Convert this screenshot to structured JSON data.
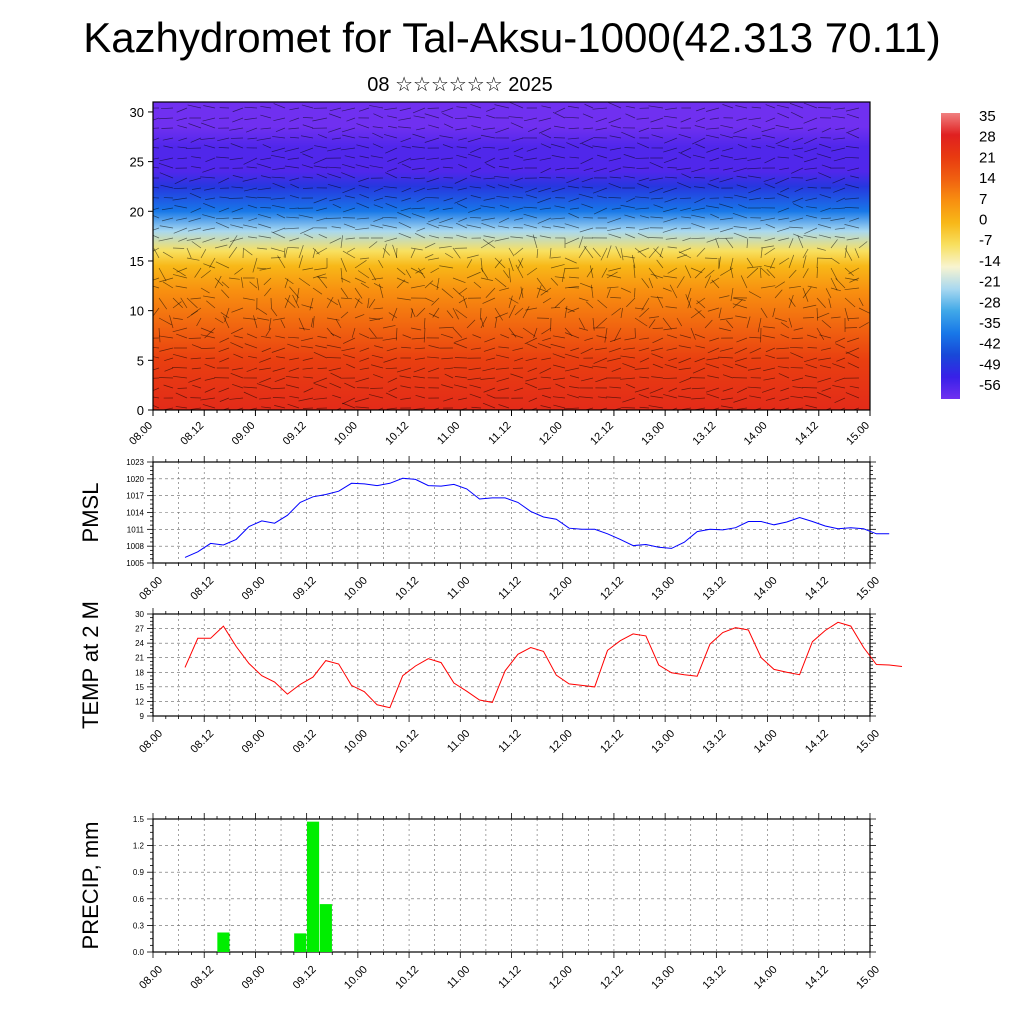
{
  "title": "Kazhydromet for Tal-Aksu-1000(42.313 70.11)",
  "subtitle": "08 ☆☆☆☆☆☆ 2025",
  "time_labels": [
    "08.00",
    "08.12",
    "09.00",
    "09.12",
    "10.00",
    "10.12",
    "11.00",
    "11.12",
    "12.00",
    "12.12",
    "13.00",
    "13.12",
    "14.00",
    "14.12",
    "15.00"
  ],
  "chart_data": [
    {
      "type": "heatmap",
      "name": "temperature-wind cross-section",
      "xlabel": "",
      "ylabel": "",
      "y_ticks": [
        0,
        5,
        10,
        15,
        20,
        25,
        30
      ],
      "ylim": [
        0,
        31
      ],
      "colorbar": {
        "labels": [
          "35",
          "28",
          "21",
          "14",
          "7",
          "0",
          "-7",
          "-14",
          "-21",
          "-28",
          "-35",
          "-42",
          "-49",
          "-56"
        ],
        "colors": [
          "#f08080",
          "#e02020",
          "#e83a10",
          "#f06010",
          "#f89010",
          "#f8b818",
          "#f8e060",
          "#f8f4d0",
          "#a8d8f0",
          "#40a8e8",
          "#1878e8",
          "#1848d8",
          "#3820e8",
          "#7030f0"
        ]
      },
      "levels": [
        {
          "level": 0,
          "temp": 25
        },
        {
          "level": 5,
          "temp": 20
        },
        {
          "level": 8,
          "temp": 14
        },
        {
          "level": 12,
          "temp": 7
        },
        {
          "level": 14.5,
          "temp": 0
        },
        {
          "level": 16,
          "temp": -7
        },
        {
          "level": 18,
          "temp": -21
        },
        {
          "level": 20,
          "temp": -35
        },
        {
          "level": 22.5,
          "temp": -45
        },
        {
          "level": 24,
          "temp": -52
        },
        {
          "level": 26.5,
          "temp": -52
        },
        {
          "level": 28.5,
          "temp": -60
        },
        {
          "level": 31,
          "temp": -62
        }
      ]
    },
    {
      "type": "line",
      "ylabel": "PMSL",
      "xlabel": "",
      "ylim": [
        1005,
        1023
      ],
      "y_ticks": [
        1005,
        1008,
        1011,
        1014,
        1017,
        1020,
        1023
      ],
      "color": "#0000ff",
      "x_hours": [
        0,
        3,
        6,
        9,
        12,
        15,
        18,
        21,
        24,
        27,
        30,
        33,
        36,
        39,
        42,
        45,
        48,
        51,
        54,
        57,
        60,
        63,
        66,
        69,
        72,
        75,
        78,
        81,
        84,
        87,
        90,
        93,
        96,
        99,
        102,
        105,
        108,
        111,
        114,
        117,
        120,
        123,
        126,
        129,
        132,
        135,
        138,
        141,
        144,
        147,
        150,
        153,
        156,
        159,
        162,
        165,
        168
      ],
      "values": [
        1006,
        1007,
        1008.5,
        1008.2,
        1009.2,
        1011.5,
        1012.5,
        1012.1,
        1013.5,
        1015.8,
        1016.8,
        1017.2,
        1017.8,
        1019.2,
        1019.1,
        1018.8,
        1019.2,
        1020.1,
        1019.9,
        1018.8,
        1018.7,
        1019,
        1018.2,
        1016.4,
        1016.6,
        1016.6,
        1015.8,
        1014.2,
        1013.2,
        1012.8,
        1011.2,
        1011,
        1011,
        1010.2,
        1009.2,
        1008.1,
        1008.3,
        1007.8,
        1007.6,
        1008.7,
        1010.6,
        1011,
        1010.9,
        1011.3,
        1012.4,
        1012.4,
        1011.8,
        1012.3,
        1013.1,
        1012.4,
        1011.6,
        1011.1,
        1011.3,
        1011.1,
        1010.2,
        1010.2,
        null
      ]
    },
    {
      "type": "line",
      "ylabel": "TEMP at 2 M",
      "xlabel": "",
      "ylim": [
        9,
        30
      ],
      "y_ticks": [
        9,
        12,
        15,
        18,
        21,
        24,
        27,
        30
      ],
      "color": "#ff0000",
      "x_hours": [
        0,
        3,
        6,
        9,
        12,
        15,
        18,
        21,
        24,
        27,
        30,
        33,
        36,
        39,
        42,
        45,
        48,
        51,
        54,
        57,
        60,
        63,
        66,
        69,
        72,
        75,
        78,
        81,
        84,
        87,
        90,
        93,
        96,
        99,
        102,
        105,
        108,
        111,
        114,
        117,
        120,
        123,
        126,
        129,
        132,
        135,
        138,
        141,
        144,
        147,
        150,
        153,
        156,
        159,
        162,
        165,
        168
      ],
      "values": [
        19,
        25,
        25,
        27.5,
        23.3,
        19.8,
        17.3,
        16,
        13.5,
        15.5,
        17,
        20.4,
        19.7,
        15.3,
        14,
        11.3,
        10.7,
        17.3,
        19.3,
        20.8,
        20,
        15.8,
        14.1,
        12.3,
        11.8,
        18.3,
        21.7,
        23.1,
        22.3,
        17.4,
        15.6,
        15.3,
        15,
        22.5,
        24.5,
        25.9,
        25.5,
        19.5,
        17.9,
        17.5,
        17.2,
        23.8,
        26.2,
        27.2,
        26.7,
        21,
        18.6,
        18,
        17.5,
        24.3,
        26.6,
        28.3,
        27.5,
        23.1,
        19.6,
        19.5,
        19.2
      ]
    },
    {
      "type": "bar",
      "ylabel": "PRECIP, mm",
      "xlabel": "",
      "ylim": [
        0,
        1.5
      ],
      "y_ticks": [
        "0.0",
        "0.3",
        "0.6",
        "0.9",
        "1.2",
        "1.5"
      ],
      "color": "#00ee00",
      "bars": [
        {
          "hour": 9,
          "value": 0.22
        },
        {
          "hour": 27,
          "value": 0.21
        },
        {
          "hour": 30,
          "value": 1.47
        },
        {
          "hour": 33,
          "value": 0.54
        }
      ]
    }
  ]
}
